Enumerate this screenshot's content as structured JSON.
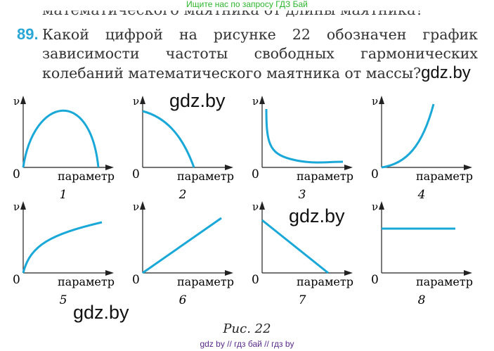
{
  "banner": "Ищите нас по запросу ГДЗ Бай",
  "cut_line": "математического маятника от длины маятника?",
  "problem": {
    "number": "89.",
    "text": "Какой цифрой на рисунке 22 обозначен график зависимости частоты свободных гармонических колебаний математического маятника от массы?"
  },
  "watermark": "gdz.by",
  "graphs": {
    "y_label": "ν",
    "origin": "0",
    "x_label": "параметр",
    "labels": [
      "1",
      "2",
      "3",
      "4",
      "5",
      "6",
      "7",
      "8"
    ]
  },
  "caption": "Рис. 22",
  "footer": "gdz by  //  гдз бай  //  гдз by",
  "colors": {
    "curve": "#1aa8d8",
    "number": "#2aa7d6",
    "banner": "#2bb52b"
  }
}
